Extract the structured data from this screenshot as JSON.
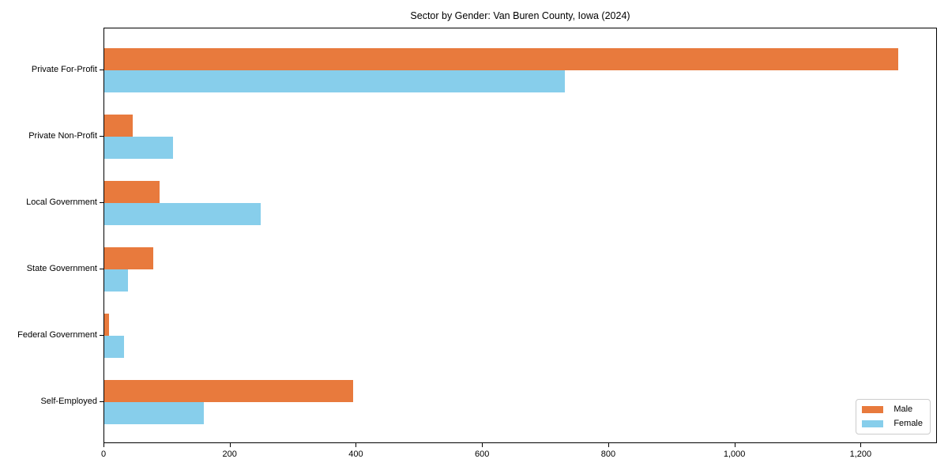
{
  "title": "Sector by Gender: Van Buren County, Iowa (2024)",
  "chart_data": {
    "type": "bar",
    "orientation": "horizontal",
    "title": "Sector by Gender: Van Buren County, Iowa (2024)",
    "xlabel": "",
    "ylabel": "",
    "categories": [
      "Private For-Profit",
      "Private Non-Profit",
      "Local Government",
      "State Government",
      "Federal Government",
      "Self-Employed"
    ],
    "series": [
      {
        "name": "Male",
        "color": "#e87a3d",
        "values": [
          1258,
          45,
          88,
          78,
          7,
          394
        ]
      },
      {
        "name": "Female",
        "color": "#87ceeb",
        "values": [
          730,
          109,
          248,
          37,
          31,
          158
        ]
      }
    ],
    "xlim": [
      0,
      1321
    ],
    "x_ticks": [
      0,
      200,
      400,
      600,
      800,
      1000,
      1200
    ],
    "x_tick_labels": [
      "0",
      "200",
      "400",
      "600",
      "800",
      "1,000",
      "1,200"
    ],
    "grid": false,
    "legend_position": "lower right",
    "colors": {
      "axis": "#000000",
      "legend_border": "#cccccc",
      "background": "#ffffff"
    }
  }
}
